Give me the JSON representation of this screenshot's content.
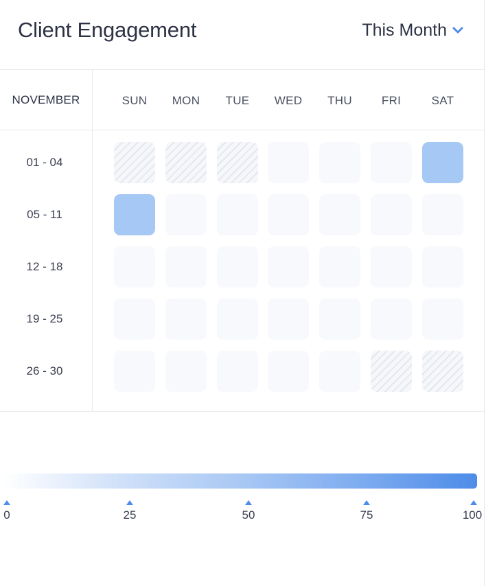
{
  "header": {
    "title": "Client Engagement",
    "range_label": "This Month",
    "accent_color": "#4d8ce8"
  },
  "calendar": {
    "month": "NOVEMBER",
    "days": [
      "SUN",
      "MON",
      "TUE",
      "WED",
      "THU",
      "FRI",
      "SAT"
    ],
    "weeks": [
      {
        "label": "01 - 04",
        "cells": [
          "inactive",
          "inactive",
          "inactive",
          "empty",
          "empty",
          "empty",
          "active"
        ]
      },
      {
        "label": "05 - 11",
        "cells": [
          "active",
          "empty",
          "empty",
          "empty",
          "empty",
          "empty",
          "empty"
        ]
      },
      {
        "label": "12 - 18",
        "cells": [
          "empty",
          "empty",
          "empty",
          "empty",
          "empty",
          "empty",
          "empty"
        ]
      },
      {
        "label": "19 - 25",
        "cells": [
          "empty",
          "empty",
          "empty",
          "empty",
          "empty",
          "empty",
          "empty"
        ]
      },
      {
        "label": "26 - 30",
        "cells": [
          "empty",
          "empty",
          "empty",
          "empty",
          "empty",
          "inactive",
          "inactive"
        ]
      }
    ],
    "active_color": "#a6c8f5"
  },
  "scale": {
    "ticks": [
      "0",
      "25",
      "50",
      "75",
      "100"
    ]
  }
}
